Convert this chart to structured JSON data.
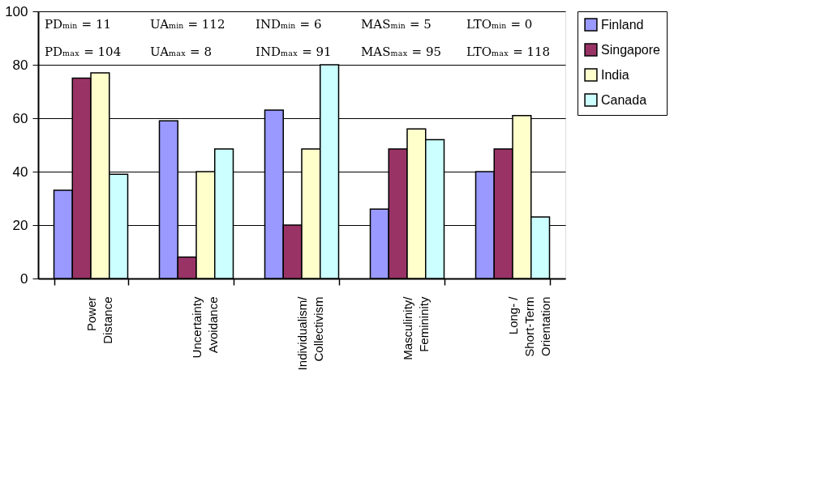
{
  "chart_data": {
    "type": "bar",
    "categories": [
      "Power\nDistance",
      "Uncertainty\nAvoidance",
      "Individualism/\nCollectivism",
      "Masculinity/\nFemininity",
      "Long- /\nShort-Term\nOrientation"
    ],
    "series": [
      {
        "name": "Finland",
        "color": "#9999ff",
        "values": [
          33,
          59,
          63,
          26,
          40
        ]
      },
      {
        "name": "Singapore",
        "color": "#993366",
        "values": [
          75,
          8,
          20,
          48.5,
          48.5
        ]
      },
      {
        "name": "India",
        "color": "#ffffcc",
        "values": [
          77,
          40,
          48.5,
          56,
          61
        ]
      },
      {
        "name": "Canada",
        "color": "#ccffff",
        "values": [
          39,
          48.5,
          80,
          52,
          23
        ]
      }
    ],
    "ylim": [
      0,
      100
    ],
    "yticks": [
      0,
      20,
      40,
      60,
      80,
      100
    ],
    "grid": "y",
    "legend": "right",
    "annotations": [
      "PDₘᵢₙ = 11",
      "PDₘₐₓ = 104",
      "UAₘᵢₙ = 112",
      "UAₘₐₓ = 8",
      "INDₘᵢₙ = 6",
      "INDₘₐₓ = 91",
      "MASₘᵢₙ = 5",
      "MASₘₐₓ = 95",
      "LTOₘᵢₙ = 0",
      "LTOₘₐₓ = 118"
    ]
  }
}
